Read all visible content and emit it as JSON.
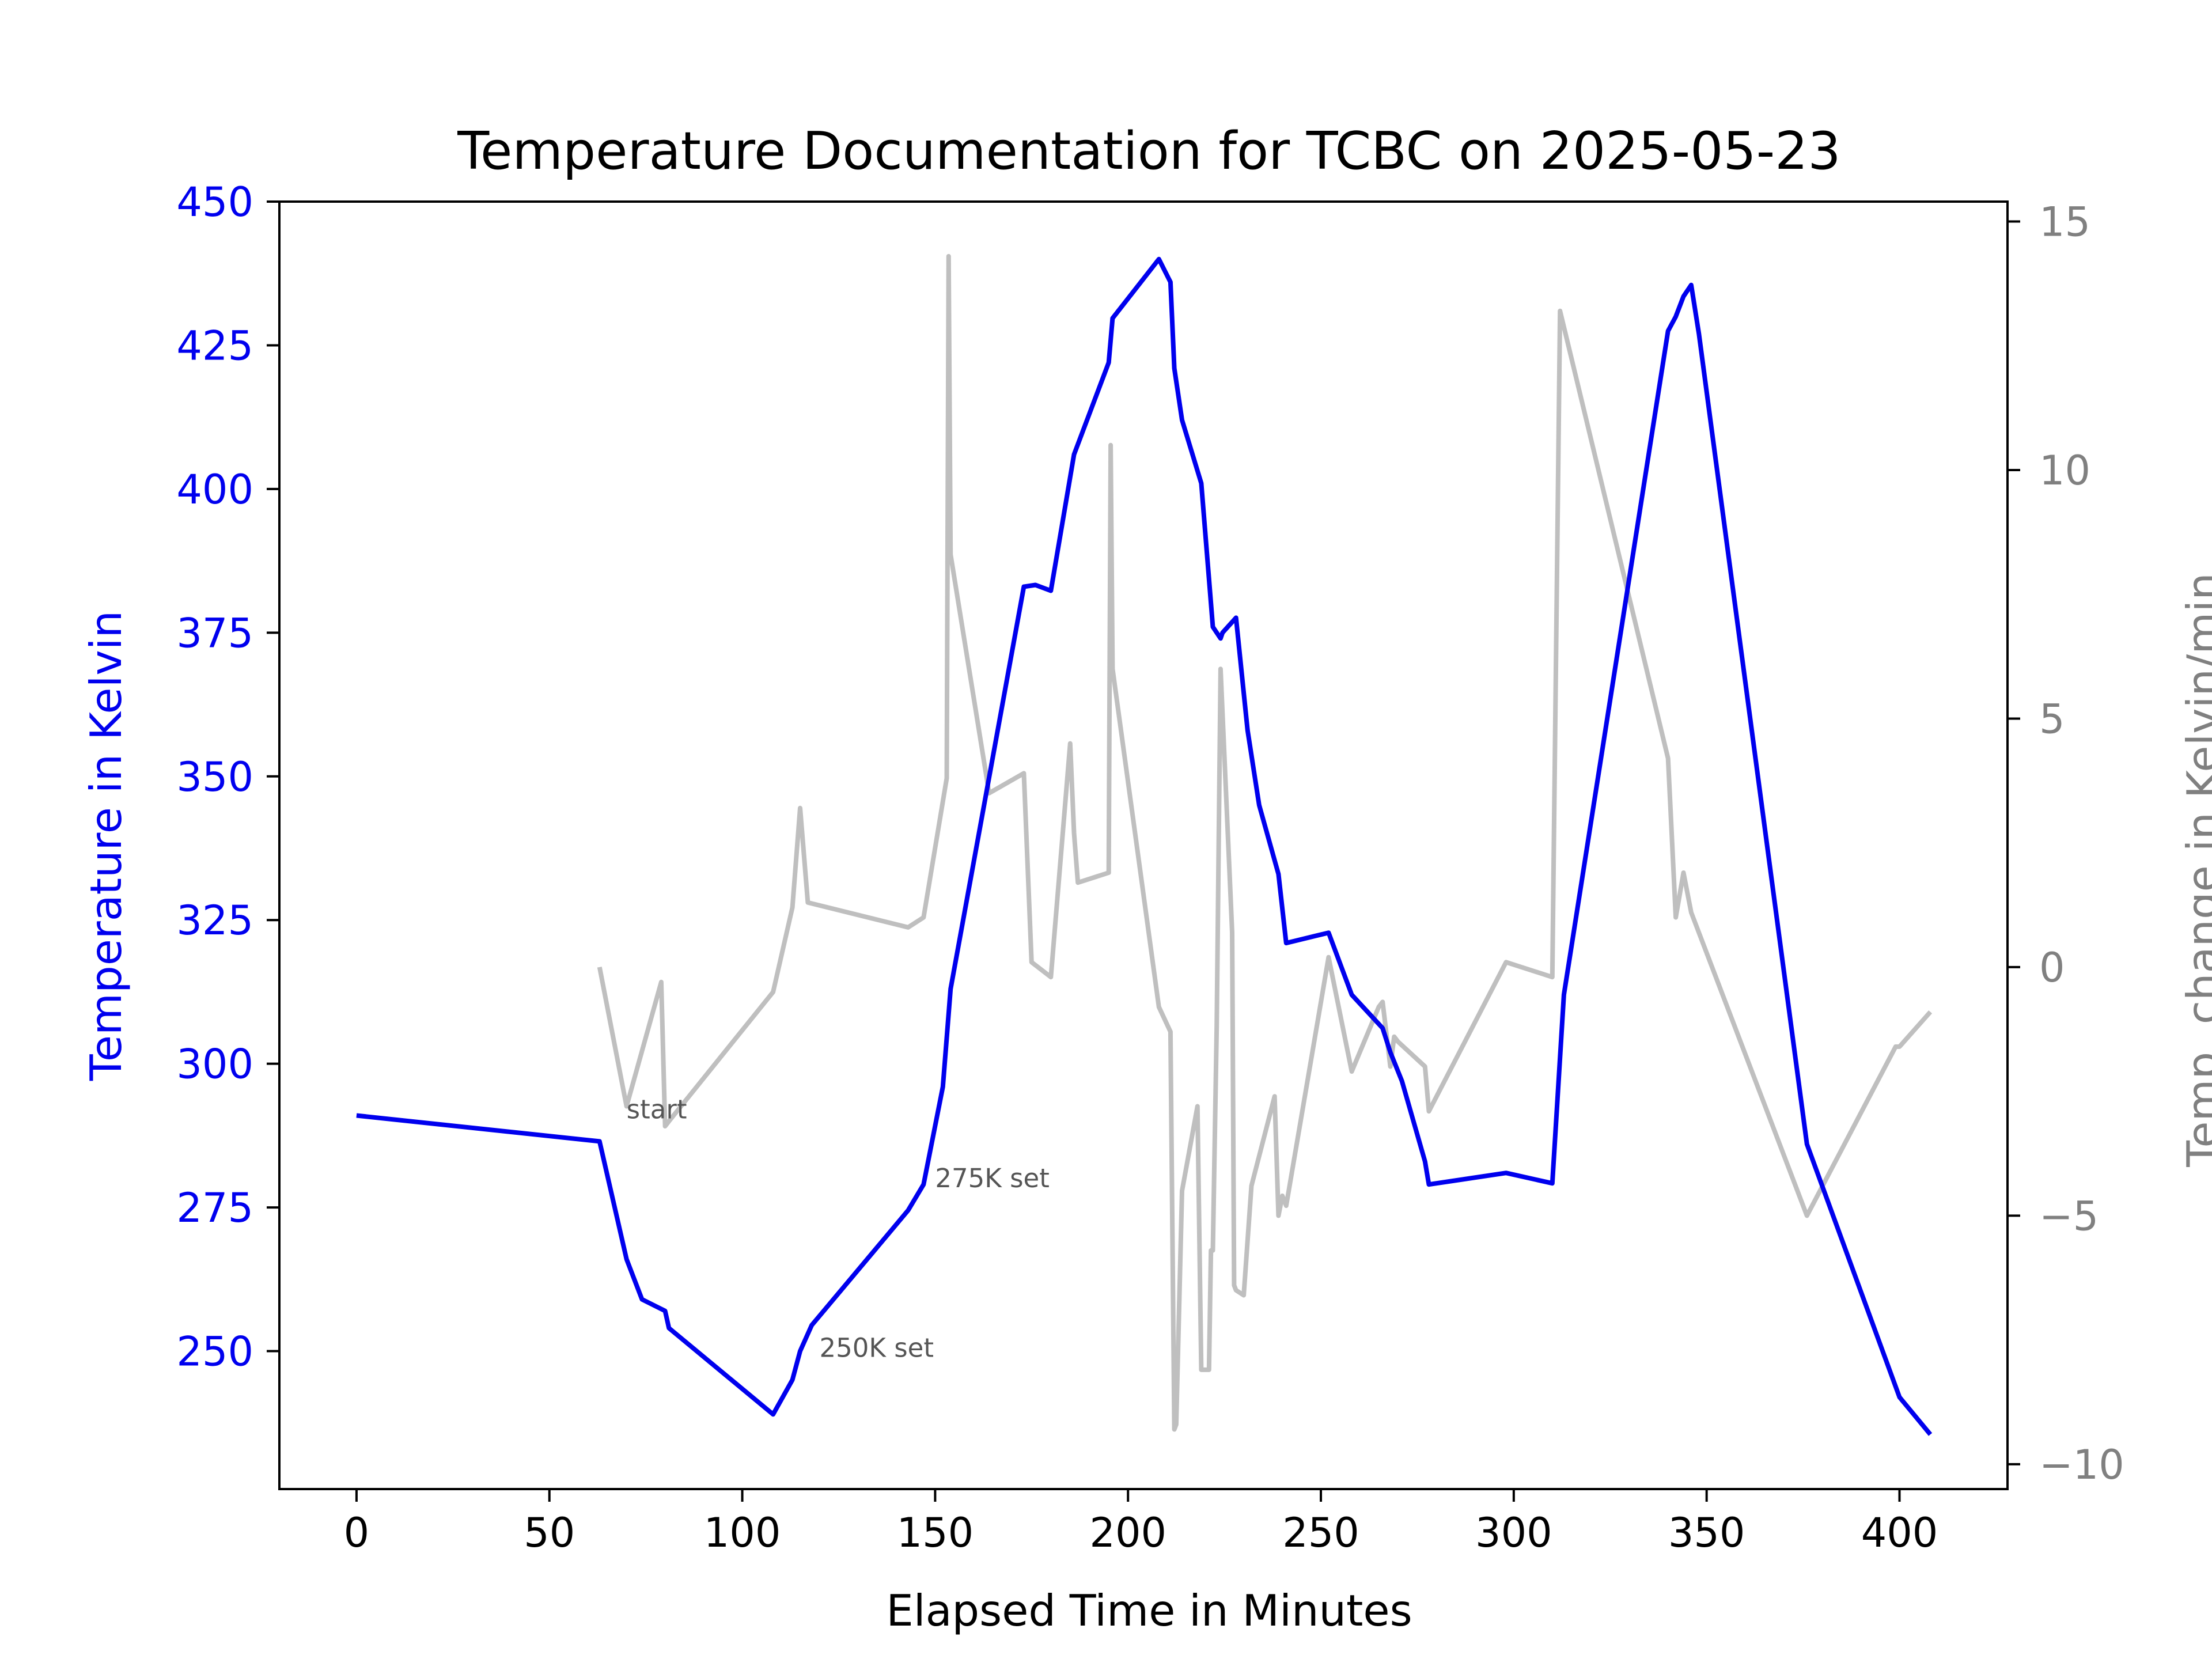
{
  "chart_data": {
    "type": "line",
    "title": "Temperature Documentation for TCBC on 2025-05-23",
    "xlabel": "Elapsed Time in Minutes",
    "ylabel_left": "Temperature in Kelvin",
    "ylabel_right": "Temp. change in Kelvin/min",
    "xlim": [
      -20,
      428
    ],
    "ylim_left": [
      226,
      450
    ],
    "ylim_right": [
      -10.5,
      15.4
    ],
    "x_ticks": [
      0,
      50,
      100,
      150,
      200,
      250,
      300,
      350,
      400
    ],
    "x_tick_labels": [
      "0",
      "50",
      "100",
      "150",
      "200",
      "250",
      "300",
      "350",
      "400"
    ],
    "y_left_ticks": [
      250,
      275,
      300,
      325,
      350,
      375,
      400,
      425,
      450
    ],
    "y_left_tick_labels": [
      "250",
      "275",
      "300",
      "325",
      "350",
      "375",
      "400",
      "425",
      "450"
    ],
    "y_right_ticks": [
      -10,
      -5,
      0,
      5,
      10,
      15
    ],
    "y_right_tick_labels": [
      "−10",
      "−5",
      "0",
      "5",
      "10",
      "15"
    ],
    "colors": {
      "temperature": "#0000ee",
      "rate": "#bfbfbf",
      "left_axis": "#0000ee",
      "right_axis": "#808080",
      "annotation": "#555555"
    },
    "series": [
      {
        "axis": "left",
        "points": [
          [
            0,
            291
          ],
          [
            63,
            286.5
          ],
          [
            70,
            266
          ],
          [
            74,
            259
          ],
          [
            80,
            257
          ],
          [
            81,
            254
          ],
          [
            108,
            239
          ],
          [
            113,
            245
          ],
          [
            115,
            250
          ],
          [
            118,
            254.5
          ],
          [
            143,
            274.5
          ],
          [
            147,
            279
          ],
          [
            152,
            296
          ],
          [
            154,
            313
          ],
          [
            173,
            383
          ],
          [
            176,
            383.3
          ],
          [
            180,
            382.3
          ],
          [
            186,
            406
          ],
          [
            195,
            422
          ],
          [
            196,
            429.7
          ],
          [
            208,
            440
          ],
          [
            211,
            436
          ],
          [
            212,
            421
          ],
          [
            214,
            412
          ],
          [
            219,
            401
          ],
          [
            222,
            376
          ],
          [
            224,
            374
          ],
          [
            224.5,
            375
          ],
          [
            228,
            377.6
          ],
          [
            231,
            358
          ],
          [
            234,
            345
          ],
          [
            239,
            333
          ],
          [
            241,
            321
          ],
          [
            252,
            322.8
          ],
          [
            258,
            312
          ],
          [
            266,
            306.2
          ],
          [
            268,
            302
          ],
          [
            271,
            297
          ],
          [
            277,
            283
          ],
          [
            278,
            279
          ],
          [
            298,
            281
          ],
          [
            310,
            279.2
          ],
          [
            313,
            312
          ],
          [
            340,
            427.5
          ],
          [
            342,
            430
          ],
          [
            344,
            433.5
          ],
          [
            346,
            435.5
          ],
          [
            348,
            427
          ],
          [
            376,
            286
          ],
          [
            400,
            242
          ],
          [
            408,
            235.5
          ]
        ]
      },
      {
        "axis": "right",
        "points": [
          [
            63,
            0
          ],
          [
            70,
            -2.8
          ],
          [
            79,
            -0.3
          ],
          [
            80,
            -3.2
          ],
          [
            81,
            -3.1
          ],
          [
            108,
            -0.5
          ],
          [
            113,
            1.2
          ],
          [
            115,
            3.2
          ],
          [
            117,
            1.3
          ],
          [
            143,
            0.8
          ],
          [
            147,
            1
          ],
          [
            153,
            3.8
          ],
          [
            153.5,
            14.3
          ],
          [
            154,
            8.3
          ],
          [
            164,
            3.5
          ],
          [
            173,
            3.9
          ],
          [
            175,
            0.1
          ],
          [
            180,
            -0.2
          ],
          [
            185,
            4.5
          ],
          [
            186,
            2.7
          ],
          [
            187,
            1.7
          ],
          [
            195,
            1.9
          ],
          [
            195.5,
            10.5
          ],
          [
            196,
            6
          ],
          [
            208,
            -0.8
          ],
          [
            211,
            -1.3
          ],
          [
            212,
            -9.3
          ],
          [
            212.5,
            -9.2
          ],
          [
            214,
            -4.5
          ],
          [
            218,
            -2.8
          ],
          [
            219,
            -8.1
          ],
          [
            221,
            -8.1
          ],
          [
            221.5,
            -5.7
          ],
          [
            222,
            -5.7
          ],
          [
            223,
            -1.2
          ],
          [
            224,
            6
          ],
          [
            227,
            0.7
          ],
          [
            227.5,
            -6.4
          ],
          [
            228,
            -6.5
          ],
          [
            230,
            -6.6
          ],
          [
            232,
            -4.4
          ],
          [
            238,
            -2.6
          ],
          [
            239,
            -5
          ],
          [
            240,
            -4.6
          ],
          [
            241,
            -4.8
          ],
          [
            252,
            0.2
          ],
          [
            258,
            -2.1
          ],
          [
            265,
            -0.8
          ],
          [
            266,
            -0.7
          ],
          [
            268,
            -2
          ],
          [
            269,
            -1.4
          ],
          [
            270,
            -1.5
          ],
          [
            277,
            -2
          ],
          [
            278,
            -2.9
          ],
          [
            298,
            0.1
          ],
          [
            310,
            -0.2
          ],
          [
            312,
            13.2
          ],
          [
            340,
            4.2
          ],
          [
            342,
            1
          ],
          [
            344,
            1.9
          ],
          [
            346,
            1.1
          ],
          [
            376,
            -5
          ],
          [
            399,
            -1.6
          ],
          [
            400,
            -1.6
          ],
          [
            408,
            -0.9
          ]
        ]
      }
    ],
    "annotations": [
      {
        "text": "start",
        "x": 70,
        "y_left": 290.5
      },
      {
        "text": "250K set",
        "x": 120,
        "y_left": 249
      },
      {
        "text": "275K set",
        "x": 150,
        "y_left": 278.5
      }
    ]
  }
}
